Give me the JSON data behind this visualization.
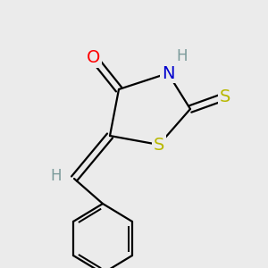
{
  "background_color": "#ebebeb",
  "atom_colors": {
    "O": "#ff0000",
    "N": "#0000cd",
    "S": "#b8b800",
    "H": "#7a9a9a",
    "C": "#000000"
  },
  "bond_color": "#000000",
  "bond_width": 1.6,
  "font_size_atom": 13,
  "fig_size": [
    3.0,
    3.0
  ],
  "dpi": 100
}
